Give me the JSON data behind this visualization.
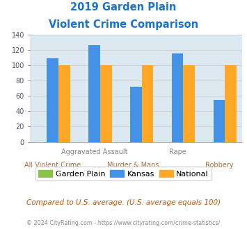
{
  "title_line1": "2019 Garden Plain",
  "title_line2": "Violent Crime Comparison",
  "title_color": "#1874CD",
  "categories": [
    "All Violent Crime",
    "Aggravated Assault",
    "Murder & Mans...",
    "Rape",
    "Robbery"
  ],
  "garden_plain": [
    0,
    0,
    0,
    0,
    0
  ],
  "kansas": [
    109,
    126,
    72,
    115,
    55
  ],
  "national": [
    100,
    100,
    100,
    100,
    100
  ],
  "colors": {
    "garden_plain": "#8BC34A",
    "kansas": "#4492E8",
    "national": "#FFA726"
  },
  "ylim": [
    0,
    140
  ],
  "yticks": [
    0,
    20,
    40,
    60,
    80,
    100,
    120,
    140
  ],
  "grid_color": "#cccccc",
  "bg_color": "#dce9f0",
  "footer_text": "Compared to U.S. average. (U.S. average equals 100)",
  "footer_color": "#cc5500",
  "copyright_text": "© 2024 CityRating.com - https://www.cityrating.com/crime-statistics/",
  "copyright_color": "#888888",
  "legend_labels": [
    "Garden Plain",
    "Kansas",
    "National"
  ],
  "bar_width": 0.28,
  "top_xlabel_color": "#888888",
  "bot_xlabel_color": "#b07040"
}
